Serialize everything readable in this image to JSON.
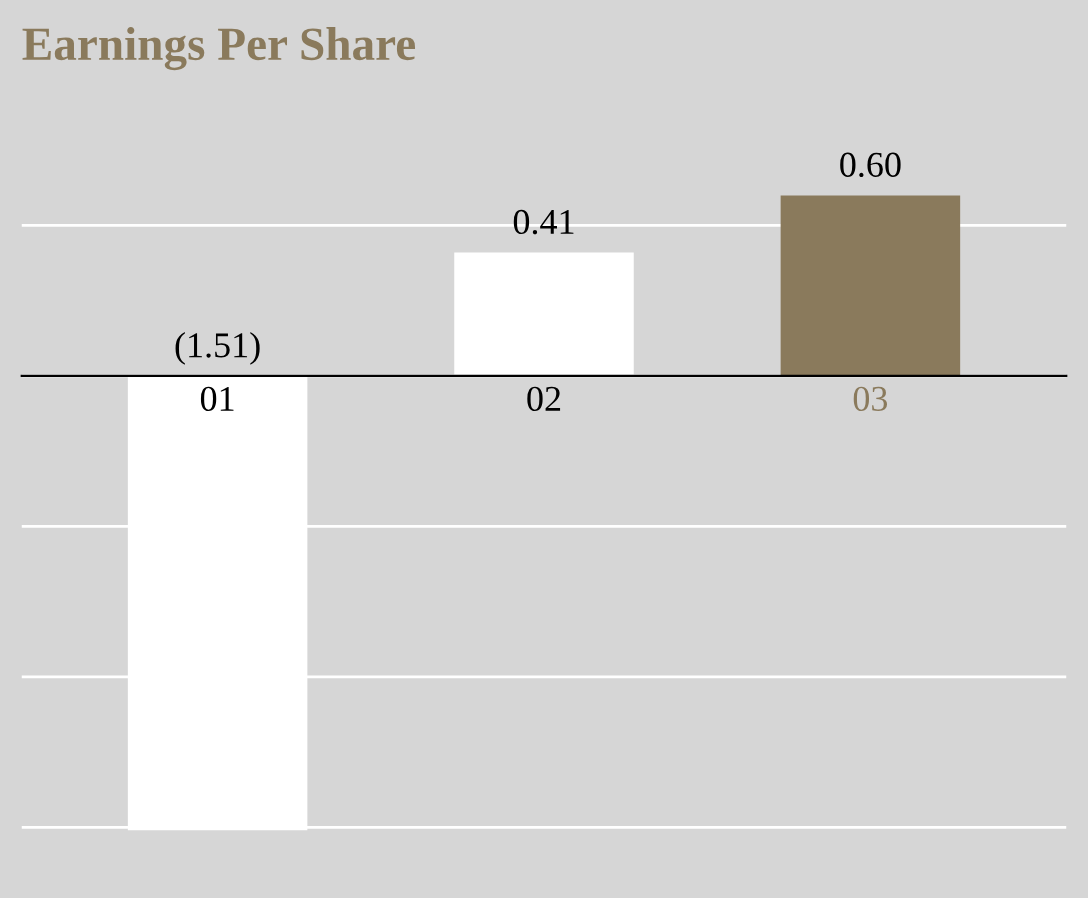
{
  "chart_data": {
    "type": "bar",
    "title": "Earnings Per Share",
    "categories": [
      "01",
      "02",
      "03"
    ],
    "values": [
      -1.51,
      0.41,
      0.6
    ],
    "value_labels": [
      "(1.51)",
      "0.41",
      "0.60"
    ],
    "colors": [
      "#ffffff",
      "#ffffff",
      "#8a7a5c"
    ],
    "grid": "y",
    "tick_labels": "x"
  }
}
